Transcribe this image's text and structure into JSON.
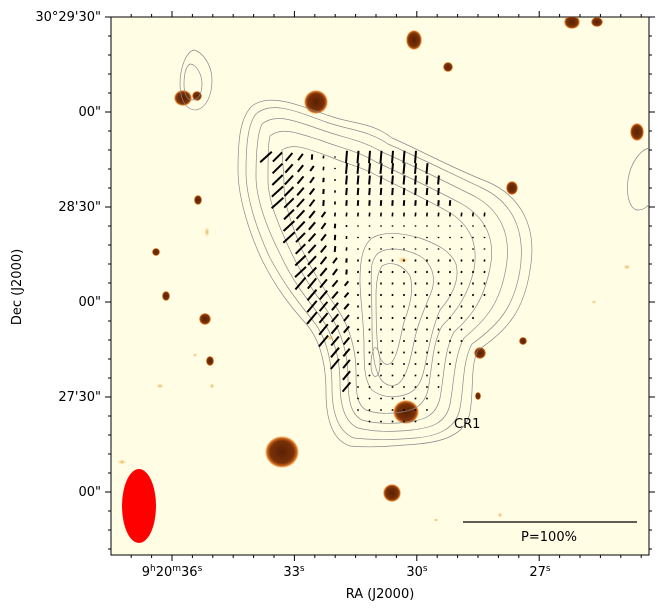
{
  "axes": {
    "xlabel": "RA (J2000)",
    "ylabel": "Dec (J2000)",
    "x_ticks": [
      "9h20m36s",
      "33s",
      "30s",
      "27s"
    ],
    "y_ticks": [
      "30°29'30\"",
      "00\"",
      "28'30\"",
      "00\"",
      "27'30\"",
      "00\""
    ]
  },
  "annotations": {
    "source_label": "CR1",
    "scale_label": "P=100%"
  },
  "colors": {
    "background": "#fffde4",
    "source_core": "#6b2c05",
    "source_edge": "#e0862a",
    "contour": "#8a8a8a",
    "vector": "#000000",
    "beam": "#ff0000"
  }
}
